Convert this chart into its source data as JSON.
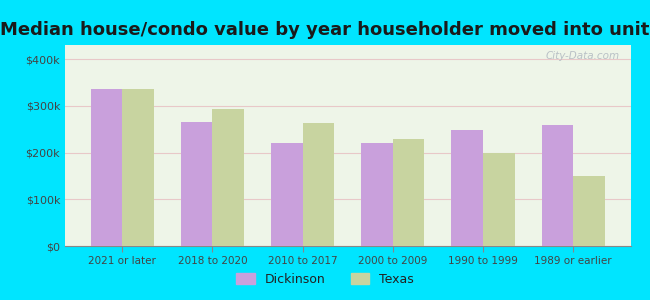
{
  "title": "Median house/condo value by year householder moved into unit",
  "categories": [
    "2021 or later",
    "2018 to 2020",
    "2010 to 2017",
    "2000 to 2009",
    "1990 to 1999",
    "1989 or earlier"
  ],
  "dickinson": [
    335000,
    265000,
    220000,
    220000,
    248000,
    258000
  ],
  "texas": [
    335000,
    293000,
    263000,
    228000,
    198000,
    150000
  ],
  "dickinson_color": "#c9a0dc",
  "texas_color": "#c8d4a0",
  "background_outer": "#00e5ff",
  "background_inner": "#eef5e8",
  "yticks": [
    0,
    100000,
    200000,
    300000,
    400000
  ],
  "ylim": [
    0,
    430000
  ],
  "title_fontsize": 13,
  "legend_labels": [
    "Dickinson",
    "Texas"
  ],
  "watermark": "City-Data.com"
}
